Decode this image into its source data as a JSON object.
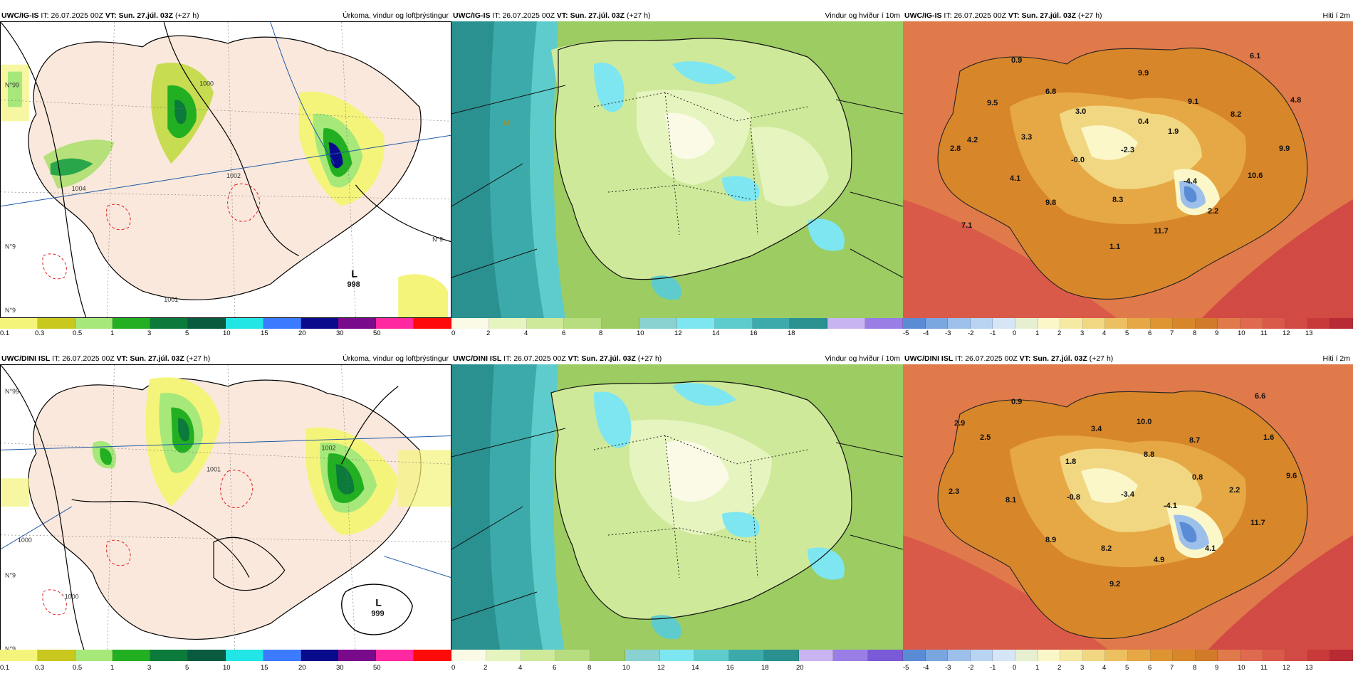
{
  "row1": {
    "left": {
      "model": "UWC/IG-IS",
      "it_label": "IT:",
      "it_value": "26.07.2025 00Z",
      "vt_label": "VT:",
      "vt_value": "Sun. 27.júl. 03Z",
      "lead": "(+27 h)",
      "title": "Úrkoma, vindur og loftþrýstingur",
      "low_letter": "L",
      "low_value": "998",
      "isobars": [
        "1004",
        "1002",
        "1000",
        "1001"
      ],
      "lat_labels": [
        "N°99",
        "N°9",
        "N°9",
        "N°9"
      ]
    },
    "middle": {
      "model": "UWC/IG-IS",
      "it_label": "IT:",
      "it_value": "26.07.2025 00Z",
      "vt_label": "VT:",
      "vt_value": "Sun. 27.júl. 03Z",
      "lead": "(+27 h)",
      "title": "Vindur og hviður í 10m",
      "gust_label": "28"
    },
    "right": {
      "model": "UWC/IG-IS",
      "it_label": "IT:",
      "it_value": "26.07.2025 00Z",
      "vt_label": "VT:",
      "vt_value": "Sun. 27.júl. 03Z",
      "lead": "(+27 h)",
      "title": "Hiti í 2m",
      "temps": [
        "0.9",
        "6.1",
        "6.8",
        "9.9",
        "9.5",
        "3.0",
        "0.4",
        "9.1",
        "4.8",
        "8.2",
        "4.2",
        "3.3",
        "1.9",
        "2.8",
        "-0.0",
        "-2.3",
        "9.9",
        "4.1",
        "-4.4",
        "10.6",
        "9.8",
        "8.3",
        "2.2",
        "7.1",
        "11.7",
        "1.1"
      ]
    }
  },
  "row2": {
    "left": {
      "model": "UWC/DINI ISL",
      "it_label": "IT:",
      "it_value": "26.07.2025 00Z",
      "vt_label": "VT:",
      "vt_value": "Sun. 27.júl. 03Z",
      "lead": "(+27 h)",
      "title": "Úrkoma, vindur og loftþrýstingur",
      "low_letter": "L",
      "low_value": "999",
      "isobars": [
        "1000",
        "1002",
        "1001",
        "1000"
      ],
      "lat_labels": [
        "N°99",
        "N°9",
        "N°9"
      ]
    },
    "middle": {
      "model": "UWC/DINI ISL",
      "it_label": "IT:",
      "it_value": "26.07.2025 00Z",
      "vt_label": "VT:",
      "vt_value": "Sun. 27.júl. 03Z",
      "lead": "(+27 h)",
      "title": "Vindur og hviður í 10m"
    },
    "right": {
      "model": "UWC/DINI ISL",
      "it_label": "IT:",
      "it_value": "26.07.2025 00Z",
      "vt_label": "VT:",
      "vt_value": "Sun. 27.júl. 03Z",
      "lead": "(+27 h)",
      "title": "Hiti í 2m",
      "temps": [
        "0.9",
        "6.6",
        "2.9",
        "3.4",
        "10.0",
        "2.5",
        "8.7",
        "1.6",
        "1.8",
        "8.8",
        "0.8",
        "9.6",
        "2.3",
        "8.1",
        "-0.8",
        "-3.4",
        "-4.1",
        "2.2",
        "11.7",
        "8.9",
        "8.2",
        "4.9",
        "4.1",
        "9.2"
      ]
    }
  },
  "scales": {
    "precip": {
      "ticks": [
        "0.1",
        "0.3",
        "0.5",
        "1",
        "3",
        "5",
        "10",
        "15",
        "20",
        "30",
        "50"
      ],
      "colors": [
        "#f4f47a",
        "#c8c81e",
        "#a6e87a",
        "#22b022",
        "#0c7a3a",
        "#0a5a40",
        "#22e6e6",
        "#3c7aff",
        "#0a0a8c",
        "#7a0a8c",
        "#ff28a0",
        "#ff0a0a"
      ]
    },
    "wind1": {
      "ticks": [
        "0",
        "2",
        "4",
        "6",
        "8",
        "10",
        "12",
        "14",
        "16",
        "18"
      ],
      "colors": [
        "#fafae6",
        "#e6f5c0",
        "#cfe99a",
        "#b8dc80",
        "#9ccc62",
        "#8ad2d2",
        "#7ee6f0",
        "#5ecccc",
        "#3caaaa",
        "#2a9090",
        "#c8b4f0",
        "#9a7ee6"
      ]
    },
    "wind2": {
      "ticks": [
        "0",
        "2",
        "4",
        "6",
        "8",
        "10",
        "12",
        "14",
        "16",
        "18",
        "20"
      ],
      "colors": [
        "#fafae6",
        "#e6f5c0",
        "#cfe99a",
        "#b8dc80",
        "#9ccc62",
        "#8ad2d2",
        "#7ee6f0",
        "#5ecccc",
        "#3caaaa",
        "#2a9090",
        "#c8b4f0",
        "#9a7ee6",
        "#7a5ad6"
      ]
    },
    "temp": {
      "ticks": [
        "-5",
        "-4",
        "-3",
        "-2",
        "-1",
        "0",
        "1",
        "2",
        "3",
        "4",
        "5",
        "6",
        "7",
        "8",
        "9",
        "10",
        "11",
        "12",
        "13"
      ],
      "colors": [
        "#5a8cd6",
        "#7aa6e0",
        "#9cc0ea",
        "#b8d4f2",
        "#d6e6f6",
        "#e6f0d0",
        "#fbf7c8",
        "#f6e9a4",
        "#f2d782",
        "#ecc060",
        "#e6a844",
        "#df9432",
        "#d8862a",
        "#d07a2a",
        "#e07a4a",
        "#e06a50",
        "#da5a4a",
        "#d24a44",
        "#c83a3a",
        "#b82a34"
      ]
    }
  }
}
